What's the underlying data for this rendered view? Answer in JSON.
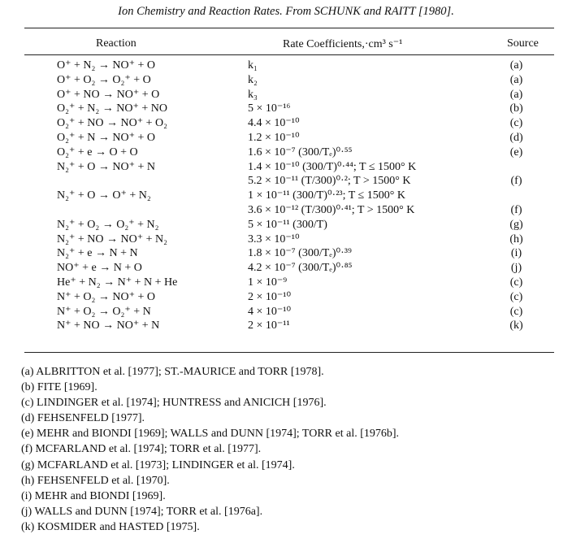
{
  "caption": "Ion Chemistry and Reaction Rates. From SCHUNK and RAITT [1980].",
  "headers": {
    "reaction": "Reaction",
    "rate": "Rate Coefficients,·cm³ s⁻¹",
    "source": "Source"
  },
  "rows": [
    {
      "reaction": "O⁺ + N₂ → NO⁺ + O",
      "rate": "k₁",
      "source": "(a)"
    },
    {
      "reaction": "O⁺ + O₂ → O₂⁺ + O",
      "rate": "k₂",
      "source": "(a)"
    },
    {
      "reaction": "O⁺ + NO → NO⁺ + O",
      "rate": "k₃",
      "source": "(a)"
    },
    {
      "reaction": "O₂⁺ + N₂ → NO⁺ + NO",
      "rate": "5 × 10⁻¹⁶",
      "source": "(b)"
    },
    {
      "reaction": "O₂⁺ + NO → NO⁺ + O₂",
      "rate": "4.4 × 10⁻¹⁰",
      "source": "(c)"
    },
    {
      "reaction": "O₂⁺ + N → NO⁺ + O",
      "rate": "1.2 × 10⁻¹⁰",
      "source": "(d)"
    },
    {
      "reaction": "O₂⁺ + e → O + O",
      "rate": "1.6 × 10⁻⁷ (300/Tₑ)⁰·⁵⁵",
      "source": "(e)"
    },
    {
      "reaction": "N₂⁺ + O → NO⁺ + N",
      "rate": "1.4 × 10⁻¹⁰ (300/T)⁰·⁴⁴; T ≤ 1500° K",
      "source": ""
    },
    {
      "reaction": "",
      "rate": "5.2 × 10⁻¹¹ (T/300)⁰·²; T > 1500° K",
      "source": "(f)"
    },
    {
      "reaction": "N₂⁺ + O → O⁺ + N₂",
      "rate": "1 × 10⁻¹¹ (300/T)⁰·²³; T ≤ 1500° K",
      "source": ""
    },
    {
      "reaction": "",
      "rate": "3.6 × 10⁻¹² (T/300)⁰·⁴¹; T > 1500° K",
      "source": "(f)"
    },
    {
      "reaction": "N₂⁺ + O₂ → O₂⁺ + N₂",
      "rate": "5 × 10⁻¹¹ (300/T)",
      "source": "(g)"
    },
    {
      "reaction": "N₂⁺ + NO → NO⁺ + N₂",
      "rate": "3.3 × 10⁻¹⁰",
      "source": "(h)"
    },
    {
      "reaction": "N₂⁺ + e → N + N",
      "rate": "1.8 × 10⁻⁷ (300/Tₑ)⁰·³⁹",
      "source": "(i)"
    },
    {
      "reaction": "NO⁺ + e → N + O",
      "rate": "4.2 × 10⁻⁷ (300/Tₑ)⁰·⁸⁵",
      "source": "(j)"
    },
    {
      "reaction": "He⁺ + N₂ → N⁺ + N + He",
      "rate": "1 × 10⁻⁹",
      "source": "(c)"
    },
    {
      "reaction": "N⁺ + O₂ → NO⁺ + O",
      "rate": "2 × 10⁻¹⁰",
      "source": "(c)"
    },
    {
      "reaction": "N⁺ + O₂ → O₂⁺ + N",
      "rate": "4 × 10⁻¹⁰",
      "source": "(c)"
    },
    {
      "reaction": "N⁺ + NO → NO⁺ + N",
      "rate": "2 × 10⁻¹¹",
      "source": "(k)"
    }
  ],
  "references": [
    "(a) ALBRITTON et al. [1977]; ST.-MAURICE and TORR [1978].",
    "(b) FITE [1969].",
    "(c) LINDINGER et al. [1974]; HUNTRESS and ANICICH [1976].",
    "(d) FEHSENFELD [1977].",
    "(e) MEHR and BIONDI [1969]; WALLS and DUNN [1974]; TORR et al. [1976b].",
    "(f) MCFARLAND et al. [1974]; TORR et al. [1977].",
    "(g) MCFARLAND et al. [1973]; LINDINGER et al. [1974].",
    "(h) FEHSENFELD et al. [1970].",
    "(i) MEHR and BIONDI [1969].",
    "(j) WALLS and DUNN [1974]; TORR et al. [1976a].",
    "(k) KOSMIDER and HASTED [1975]."
  ]
}
